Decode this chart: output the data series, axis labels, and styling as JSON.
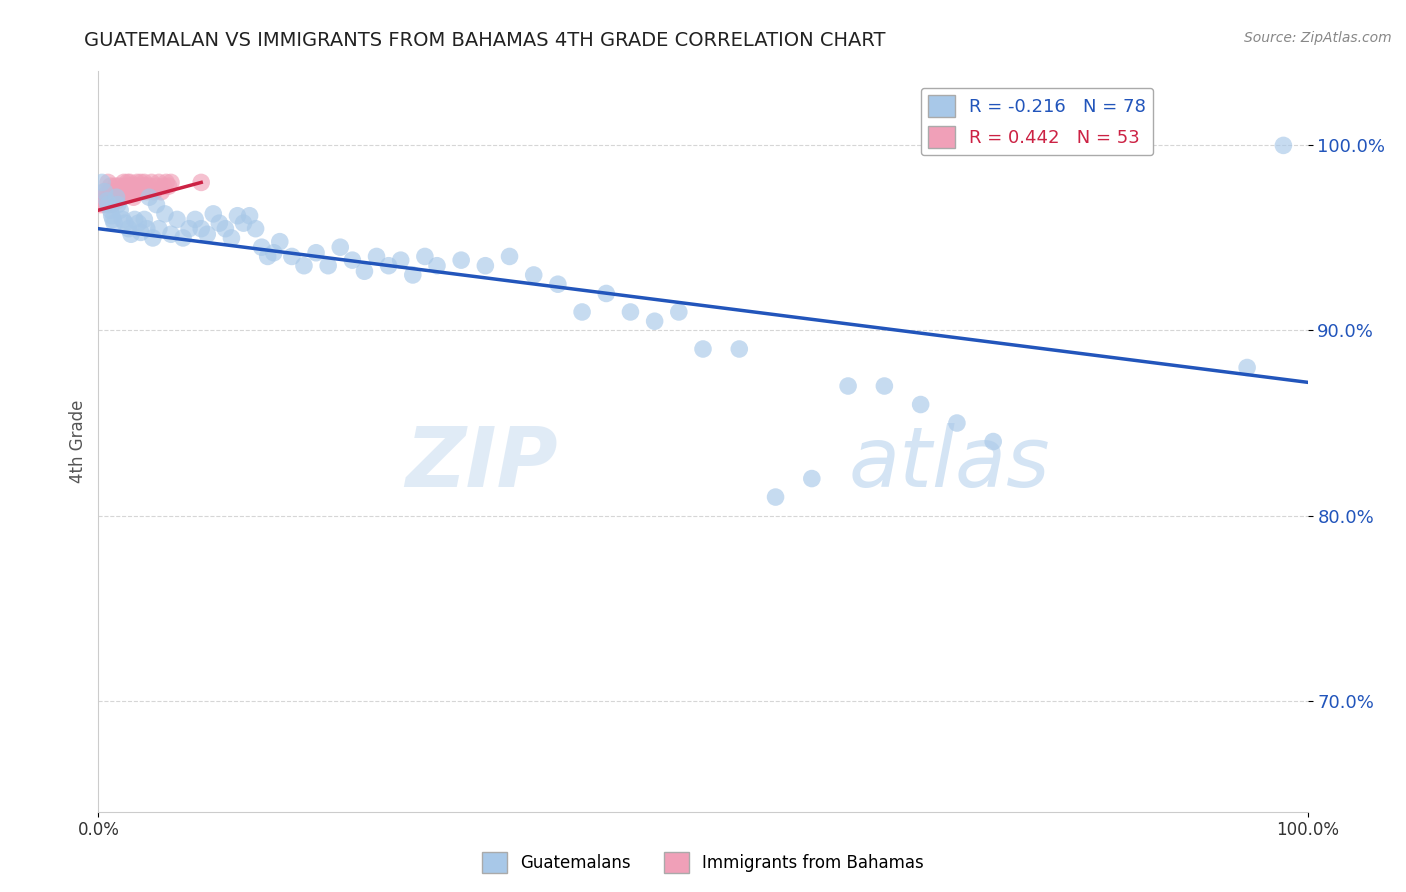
{
  "title": "GUATEMALAN VS IMMIGRANTS FROM BAHAMAS 4TH GRADE CORRELATION CHART",
  "source_text": "Source: ZipAtlas.com",
  "ylabel": "4th Grade",
  "xlim": [
    0.0,
    1.0
  ],
  "ylim": [
    0.64,
    1.04
  ],
  "yticks": [
    0.7,
    0.8,
    0.9,
    1.0
  ],
  "ytick_labels": [
    "70.0%",
    "80.0%",
    "90.0%",
    "100.0%"
  ],
  "blue_R": -0.216,
  "blue_N": 78,
  "pink_R": 0.442,
  "pink_N": 53,
  "blue_color": "#A8C8E8",
  "pink_color": "#F0A0B8",
  "blue_line_color": "#2255BB",
  "pink_line_color": "#CC2244",
  "legend_label_blue": "Guatemalans",
  "legend_label_pink": "Immigrants from Bahamas",
  "blue_scatter_x": [
    0.003,
    0.005,
    0.007,
    0.008,
    0.01,
    0.011,
    0.012,
    0.013,
    0.015,
    0.016,
    0.018,
    0.02,
    0.022,
    0.025,
    0.027,
    0.03,
    0.033,
    0.035,
    0.038,
    0.04,
    0.042,
    0.045,
    0.048,
    0.05,
    0.055,
    0.06,
    0.065,
    0.07,
    0.075,
    0.08,
    0.085,
    0.09,
    0.095,
    0.1,
    0.105,
    0.11,
    0.115,
    0.12,
    0.125,
    0.13,
    0.135,
    0.14,
    0.145,
    0.15,
    0.16,
    0.17,
    0.18,
    0.19,
    0.2,
    0.21,
    0.22,
    0.23,
    0.24,
    0.25,
    0.26,
    0.27,
    0.28,
    0.3,
    0.32,
    0.34,
    0.36,
    0.38,
    0.4,
    0.42,
    0.44,
    0.46,
    0.48,
    0.5,
    0.53,
    0.56,
    0.59,
    0.62,
    0.65,
    0.68,
    0.71,
    0.74,
    0.95,
    0.98
  ],
  "blue_scatter_y": [
    0.98,
    0.975,
    0.97,
    0.968,
    0.965,
    0.962,
    0.96,
    0.958,
    0.972,
    0.968,
    0.965,
    0.96,
    0.958,
    0.955,
    0.952,
    0.96,
    0.958,
    0.953,
    0.96,
    0.955,
    0.972,
    0.95,
    0.968,
    0.955,
    0.963,
    0.952,
    0.96,
    0.95,
    0.955,
    0.96,
    0.955,
    0.952,
    0.963,
    0.958,
    0.955,
    0.95,
    0.962,
    0.958,
    0.962,
    0.955,
    0.945,
    0.94,
    0.942,
    0.948,
    0.94,
    0.935,
    0.942,
    0.935,
    0.945,
    0.938,
    0.932,
    0.94,
    0.935,
    0.938,
    0.93,
    0.94,
    0.935,
    0.938,
    0.935,
    0.94,
    0.93,
    0.925,
    0.91,
    0.92,
    0.91,
    0.905,
    0.91,
    0.89,
    0.89,
    0.81,
    0.82,
    0.87,
    0.87,
    0.86,
    0.85,
    0.84,
    0.88,
    1.0
  ],
  "pink_scatter_x": [
    0.002,
    0.003,
    0.004,
    0.005,
    0.006,
    0.007,
    0.008,
    0.008,
    0.009,
    0.01,
    0.01,
    0.011,
    0.012,
    0.013,
    0.014,
    0.015,
    0.015,
    0.016,
    0.017,
    0.018,
    0.019,
    0.02,
    0.021,
    0.022,
    0.023,
    0.024,
    0.025,
    0.026,
    0.027,
    0.028,
    0.029,
    0.03,
    0.031,
    0.032,
    0.033,
    0.034,
    0.035,
    0.036,
    0.037,
    0.038,
    0.039,
    0.04,
    0.042,
    0.044,
    0.046,
    0.048,
    0.05,
    0.052,
    0.054,
    0.056,
    0.058,
    0.06,
    0.085
  ],
  "pink_scatter_y": [
    0.968,
    0.972,
    0.97,
    0.975,
    0.968,
    0.97,
    0.975,
    0.98,
    0.972,
    0.975,
    0.978,
    0.968,
    0.972,
    0.975,
    0.978,
    0.97,
    0.975,
    0.972,
    0.978,
    0.975,
    0.972,
    0.975,
    0.98,
    0.978,
    0.975,
    0.98,
    0.978,
    0.98,
    0.975,
    0.978,
    0.972,
    0.975,
    0.978,
    0.98,
    0.975,
    0.978,
    0.98,
    0.975,
    0.978,
    0.98,
    0.978,
    0.975,
    0.978,
    0.98,
    0.975,
    0.978,
    0.98,
    0.975,
    0.978,
    0.98,
    0.978,
    0.98,
    0.98
  ],
  "blue_line_x0": 0.0,
  "blue_line_x1": 1.0,
  "blue_line_y0": 0.955,
  "blue_line_y1": 0.872,
  "pink_line_x0": 0.0,
  "pink_line_x1": 0.085,
  "pink_line_y0": 0.965,
  "pink_line_y1": 0.98,
  "watermark_text": "ZIP",
  "watermark_text2": "atlas",
  "background_color": "#FFFFFF",
  "grid_color": "#CCCCCC",
  "grid_alpha": 0.8
}
